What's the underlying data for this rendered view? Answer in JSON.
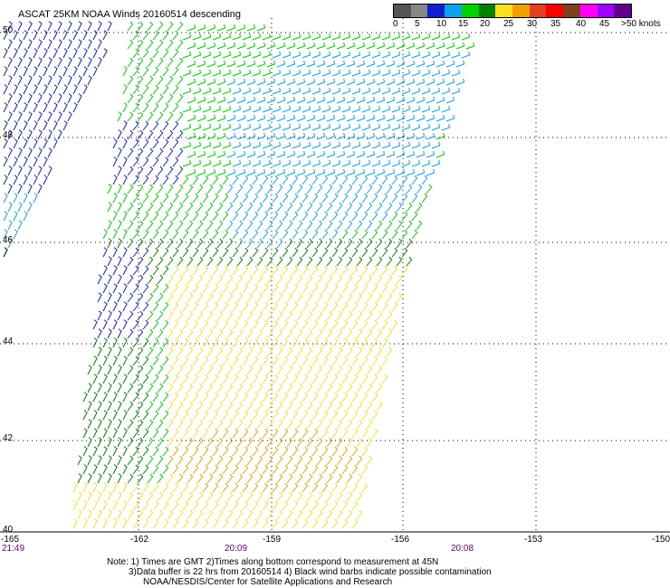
{
  "title": "ASCAT 25KM NOAA Winds 20160514 descending",
  "legend": {
    "colors": [
      "#555555",
      "#888888",
      "#1020d0",
      "#10a0f0",
      "#00d000",
      "#008000",
      "#f8e020",
      "#f0a000",
      "#e04020",
      "#ff0000",
      "#804020",
      "#ff00ff",
      "#a000ff",
      "#600090"
    ],
    "labels": [
      "0",
      "5",
      "10",
      "15",
      "20",
      "25",
      "30",
      "35",
      "40",
      "45",
      ">50 knots"
    ]
  },
  "axes": {
    "lat_labels": [
      "50",
      "48",
      "46",
      "44",
      "42",
      "40"
    ],
    "lon_labels": [
      "-165",
      "-162",
      "-159",
      "-156",
      "-153",
      "-150"
    ],
    "time_labels": [
      "21:49",
      "20:09",
      "20:08"
    ]
  },
  "notes": [
    "Note: 1) Times are GMT 2)Times along bottom correspond to measurement at 45N",
    "3)Data buffer is 22 hrs from 20160514 4) Black wind barbs indicate possible contamination",
    "NOAA/NESDIS/Center for Satellite Applications and Research"
  ],
  "wind_colors": {
    "blue": "#1020d0",
    "light_blue": "#10a0f0",
    "green": "#00d000",
    "dark_green": "#008000",
    "yellow": "#f8e020",
    "orange": "#f0a000",
    "black": "#000000"
  }
}
